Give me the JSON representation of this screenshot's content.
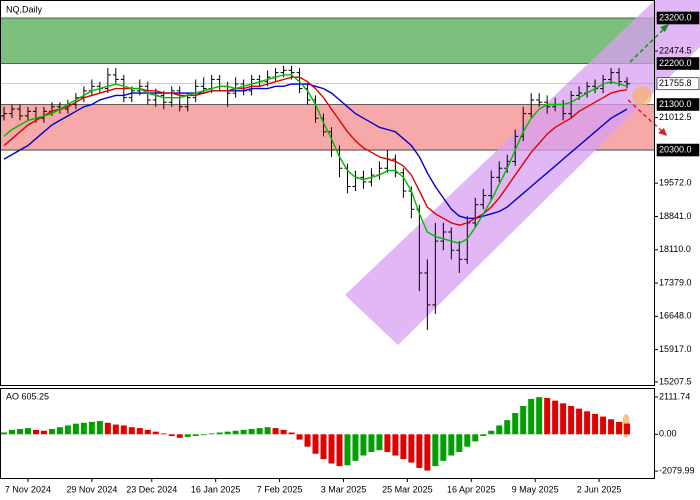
{
  "chart_data": [
    {
      "type": "ohlc",
      "title": "NQ,Daily",
      "color": "#000000",
      "ylim": [
        15140,
        23595
      ],
      "yticks": [
        {
          "value": 22474.5,
          "label": "22474.5"
        },
        {
          "value": 21012.5,
          "label": "21012.5"
        },
        {
          "value": 19572,
          "label": "19572.0"
        },
        {
          "value": 18841,
          "label": "18841.0"
        },
        {
          "value": 18110,
          "label": "18110.0"
        },
        {
          "value": 17379,
          "label": "17379.0"
        },
        {
          "value": 16648,
          "label": "16648.0"
        },
        {
          "value": 15917,
          "label": "15917.0"
        },
        {
          "value": 15207.5,
          "label": "15207.5"
        }
      ],
      "zones": [
        {
          "from": 22200,
          "to": 23200,
          "from_label": "22200.0",
          "to_label": "23200.0",
          "color": "#7dbf7d"
        },
        {
          "from": 20300,
          "to": 21300,
          "from_label": "20300.0",
          "to_label": "21300.0",
          "color": "#f7a8a8"
        }
      ],
      "last_price": {
        "value": 21755.8,
        "label": "21755.8"
      },
      "xlim": [
        0,
        82
      ],
      "xticks": [
        {
          "value": 3.5,
          "label": "7 Nov 2024"
        },
        {
          "value": 11.5,
          "label": "29 Nov 2024"
        },
        {
          "value": 19,
          "label": "23 Dec 2024"
        },
        {
          "value": 27,
          "label": "16 Jan 2025"
        },
        {
          "value": 35,
          "label": "7 Feb 2025"
        },
        {
          "value": 43,
          "label": "3 Mar 2025"
        },
        {
          "value": 51,
          "label": "25 Mar 2025"
        },
        {
          "value": 59,
          "label": "16 Apr 2025"
        },
        {
          "value": 67,
          "label": "9 May 2025"
        },
        {
          "value": 75,
          "label": "2 Jun 2025"
        }
      ],
      "ohlc": [
        [
          21050,
          21250,
          20950,
          21100
        ],
        [
          21100,
          21300,
          21000,
          21200
        ],
        [
          21200,
          21300,
          20950,
          21050
        ],
        [
          21050,
          21250,
          20950,
          21150
        ],
        [
          21150,
          21250,
          20900,
          21000
        ],
        [
          21000,
          21250,
          20900,
          21150
        ],
        [
          21150,
          21350,
          21050,
          21250
        ],
        [
          21250,
          21350,
          21100,
          21200
        ],
        [
          21200,
          21400,
          21100,
          21300
        ],
        [
          21300,
          21550,
          21200,
          21450
        ],
        [
          21450,
          21700,
          21350,
          21600
        ],
        [
          21600,
          21850,
          21500,
          21700
        ],
        [
          21700,
          21800,
          21550,
          21650
        ],
        [
          21650,
          22100,
          21550,
          21950
        ],
        [
          21950,
          22100,
          21750,
          21850
        ],
        [
          21850,
          21950,
          21350,
          21450
        ],
        [
          21450,
          21700,
          21350,
          21600
        ],
        [
          21600,
          21850,
          21500,
          21700
        ],
        [
          21700,
          21800,
          21300,
          21400
        ],
        [
          21400,
          21650,
          21250,
          21500
        ],
        [
          21500,
          21600,
          21200,
          21350
        ],
        [
          21350,
          21700,
          21250,
          21600
        ],
        [
          21600,
          21700,
          21150,
          21250
        ],
        [
          21250,
          21550,
          21150,
          21450
        ],
        [
          21450,
          21850,
          21350,
          21700
        ],
        [
          21700,
          21900,
          21550,
          21650
        ],
        [
          21650,
          21950,
          21550,
          21850
        ],
        [
          21850,
          21950,
          21600,
          21700
        ],
        [
          21700,
          21800,
          21250,
          21550
        ],
        [
          21550,
          21900,
          21450,
          21750
        ],
        [
          21750,
          21850,
          21500,
          21600
        ],
        [
          21600,
          21950,
          21500,
          21850
        ],
        [
          21850,
          21950,
          21700,
          21800
        ],
        [
          21800,
          22050,
          21700,
          21900
        ],
        [
          21900,
          22100,
          21800,
          22000
        ],
        [
          22000,
          22150,
          21900,
          22050
        ],
        [
          22050,
          22150,
          21850,
          22000
        ],
        [
          22000,
          22100,
          21550,
          21650
        ],
        [
          21650,
          21750,
          21300,
          21400
        ],
        [
          21400,
          21500,
          20900,
          21000
        ],
        [
          21000,
          21100,
          20600,
          20700
        ],
        [
          20700,
          20800,
          20150,
          20300
        ],
        [
          20300,
          20400,
          19700,
          19900
        ],
        [
          19900,
          20000,
          19350,
          19500
        ],
        [
          19500,
          19850,
          19400,
          19700
        ],
        [
          19700,
          19850,
          19450,
          19600
        ],
        [
          19600,
          19900,
          19500,
          19750
        ],
        [
          19750,
          20050,
          19650,
          19900
        ],
        [
          19900,
          20300,
          19800,
          20100
        ],
        [
          20100,
          20200,
          19700,
          19800
        ],
        [
          19800,
          19900,
          19250,
          19400
        ],
        [
          19400,
          19500,
          18800,
          19000
        ],
        [
          19000,
          19100,
          17200,
          17600
        ],
        [
          17600,
          17900,
          16350,
          16900
        ],
        [
          16900,
          18700,
          16700,
          18300
        ],
        [
          18300,
          18700,
          18100,
          18500
        ],
        [
          18500,
          18600,
          17900,
          18100
        ],
        [
          18100,
          18300,
          17600,
          17900
        ],
        [
          17900,
          18850,
          17800,
          18700
        ],
        [
          18700,
          19250,
          18600,
          19100
        ],
        [
          19100,
          19450,
          19000,
          19300
        ],
        [
          19300,
          19850,
          19200,
          19700
        ],
        [
          19700,
          20050,
          19600,
          19900
        ],
        [
          19900,
          20200,
          19800,
          20050
        ],
        [
          20050,
          20750,
          19950,
          20600
        ],
        [
          20600,
          21250,
          20500,
          21100
        ],
        [
          21100,
          21550,
          21000,
          21400
        ],
        [
          21400,
          21550,
          21250,
          21350
        ],
        [
          21350,
          21500,
          21100,
          21250
        ],
        [
          21250,
          21450,
          21150,
          21300
        ],
        [
          21300,
          21400,
          20950,
          21100
        ],
        [
          21100,
          21600,
          21000,
          21500
        ],
        [
          21500,
          21700,
          21400,
          21550
        ],
        [
          21550,
          21800,
          21450,
          21700
        ],
        [
          21700,
          21850,
          21550,
          21650
        ],
        [
          21650,
          21950,
          21550,
          21850
        ],
        [
          21850,
          22100,
          21750,
          22000
        ],
        [
          22000,
          22100,
          21700,
          21800
        ],
        [
          21800,
          21900,
          21650,
          21755.8
        ]
      ],
      "lines": [
        {
          "color": "#0000cc",
          "values": [
            20100,
            20200,
            20300,
            20400,
            20550,
            20700,
            20850,
            20950,
            21050,
            21150,
            21250,
            21300,
            21400,
            21450,
            21500,
            21500,
            21550,
            21550,
            21550,
            21550,
            21550,
            21550,
            21550,
            21550,
            21550,
            21550,
            21600,
            21600,
            21600,
            21600,
            21600,
            21650,
            21650,
            21650,
            21700,
            21700,
            21750,
            21750,
            21750,
            21700,
            21650,
            21550,
            21400,
            21250,
            21100,
            21000,
            20900,
            20800,
            20750,
            20700,
            20550,
            20400,
            20150,
            19800,
            19500,
            19250,
            19000,
            18850,
            18800,
            18800,
            18850,
            18900,
            18950,
            19050,
            19200,
            19350,
            19500,
            19650,
            19800,
            19950,
            20100,
            20250,
            20400,
            20550,
            20700,
            20850,
            21000,
            21100,
            21200
          ]
        },
        {
          "color": "#e00000",
          "values": [
            20400,
            20550,
            20700,
            20850,
            20950,
            21050,
            21150,
            21200,
            21250,
            21350,
            21450,
            21500,
            21550,
            21600,
            21650,
            21650,
            21650,
            21650,
            21600,
            21600,
            21550,
            21550,
            21500,
            21500,
            21500,
            21550,
            21600,
            21600,
            21600,
            21650,
            21650,
            21700,
            21700,
            21750,
            21800,
            21850,
            21900,
            21900,
            21800,
            21650,
            21450,
            21200,
            20950,
            20700,
            20500,
            20350,
            20250,
            20150,
            20100,
            20050,
            19950,
            19750,
            19400,
            19050,
            18900,
            18800,
            18700,
            18650,
            18700,
            18800,
            18900,
            19050,
            19250,
            19500,
            19750,
            20000,
            20250,
            20450,
            20650,
            20800,
            20900,
            21000,
            21150,
            21250,
            21350,
            21450,
            21550,
            21600,
            21620
          ]
        },
        {
          "color": "#00bb00",
          "values": [
            20600,
            20750,
            20850,
            20950,
            21000,
            21050,
            21100,
            21200,
            21300,
            21400,
            21500,
            21600,
            21650,
            21700,
            21750,
            21700,
            21650,
            21650,
            21550,
            21500,
            21450,
            21450,
            21450,
            21500,
            21550,
            21600,
            21650,
            21700,
            21700,
            21650,
            21700,
            21750,
            21800,
            21850,
            21900,
            21950,
            21950,
            21800,
            21600,
            21300,
            20900,
            20550,
            20150,
            19850,
            19700,
            19650,
            19700,
            19750,
            19850,
            19850,
            19700,
            19400,
            18900,
            18500,
            18400,
            18350,
            18300,
            18250,
            18350,
            18600,
            18900,
            19200,
            19550,
            19900,
            20300,
            20700,
            21000,
            21200,
            21300,
            21300,
            21300,
            21350,
            21450,
            21550,
            21650,
            21750,
            21800,
            21750,
            21700
          ]
        }
      ]
    },
    {
      "type": "oscillator",
      "title": "AO 605.25",
      "up_color": "#00a000",
      "down_color": "#e00000",
      "ylim": [
        -2470,
        2560
      ],
      "yticks": [
        {
          "value": 2111.74,
          "label": "2111.74"
        },
        {
          "value": 0,
          "label": "0.00"
        },
        {
          "value": -2079.99,
          "label": "-2079.99"
        }
      ],
      "values": [
        100,
        250,
        300,
        350,
        250,
        200,
        300,
        400,
        500,
        600,
        650,
        700,
        750,
        650,
        550,
        500,
        400,
        350,
        250,
        150,
        50,
        -100,
        -200,
        -150,
        -100,
        -50,
        50,
        100,
        150,
        200,
        250,
        300,
        350,
        400,
        350,
        250,
        100,
        -300,
        -700,
        -1100,
        -1400,
        -1650,
        -1800,
        -1750,
        -1500,
        -1200,
        -1000,
        -900,
        -1000,
        -1200,
        -1400,
        -1600,
        -1900,
        -2050,
        -1800,
        -1500,
        -1200,
        -1000,
        -700,
        -400,
        -100,
        200,
        500,
        800,
        1200,
        1600,
        2000,
        2100,
        2050,
        1900,
        1750,
        1600,
        1450,
        1300,
        1150,
        1000,
        850,
        700,
        605.25
      ]
    }
  ]
}
